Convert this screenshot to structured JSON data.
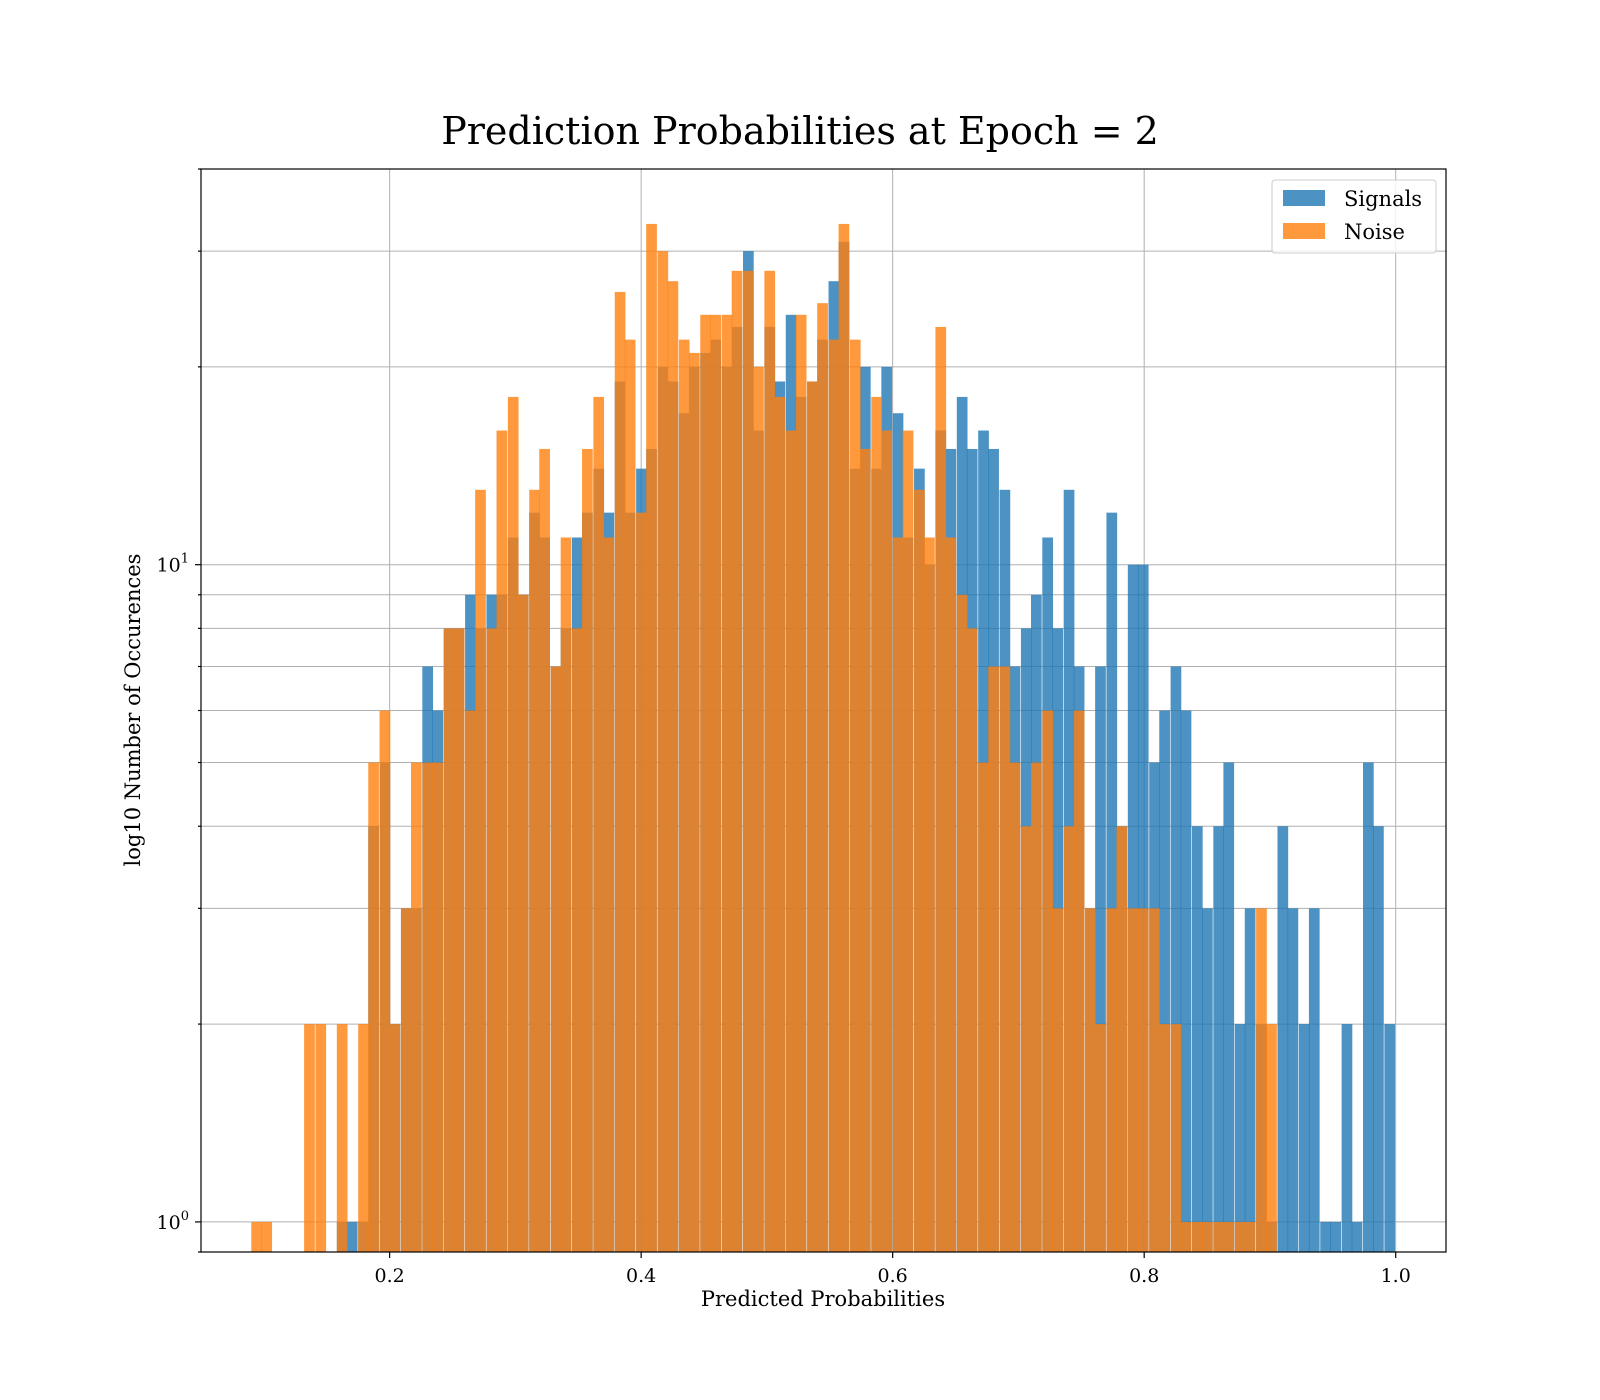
{
  "chart_data": {
    "type": "bar",
    "title": "Prediction Probabilities at Epoch = 2",
    "xlabel": "Predicted Probabilities",
    "ylabel": "log10 Number of Occurences",
    "xlim": [
      0.05,
      1.04
    ],
    "ylim": [
      0.9,
      40
    ],
    "yscale": "log",
    "x_ticks": [
      0.2,
      0.4,
      0.6,
      0.8,
      1.0
    ],
    "x_tick_labels": [
      "0.2",
      "0.4",
      "0.6",
      "0.8",
      "1.0"
    ],
    "y_ticks": [
      1,
      10
    ],
    "grid": true,
    "legend_position": "top-right",
    "bin_width": 0.0085,
    "series": [
      {
        "name": "Signals",
        "color": "#1f77b4",
        "bins": [
          [
            0.158,
            1
          ],
          [
            0.166,
            1
          ],
          [
            0.175,
            1
          ],
          [
            0.183,
            4
          ],
          [
            0.192,
            5
          ],
          [
            0.2,
            2
          ],
          [
            0.209,
            3
          ],
          [
            0.217,
            3
          ],
          [
            0.226,
            7
          ],
          [
            0.234,
            6
          ],
          [
            0.243,
            8
          ],
          [
            0.251,
            8
          ],
          [
            0.26,
            9
          ],
          [
            0.268,
            8
          ],
          [
            0.277,
            9
          ],
          [
            0.285,
            9
          ],
          [
            0.294,
            11
          ],
          [
            0.302,
            9
          ],
          [
            0.311,
            12
          ],
          [
            0.319,
            11
          ],
          [
            0.328,
            7
          ],
          [
            0.336,
            8
          ],
          [
            0.345,
            11
          ],
          [
            0.353,
            12
          ],
          [
            0.362,
            14
          ],
          [
            0.37,
            12
          ],
          [
            0.379,
            19
          ],
          [
            0.387,
            12
          ],
          [
            0.396,
            14
          ],
          [
            0.404,
            15
          ],
          [
            0.413,
            20
          ],
          [
            0.421,
            19
          ],
          [
            0.43,
            17
          ],
          [
            0.438,
            20
          ],
          [
            0.447,
            21
          ],
          [
            0.455,
            22
          ],
          [
            0.464,
            20
          ],
          [
            0.472,
            23
          ],
          [
            0.481,
            30
          ],
          [
            0.489,
            16
          ],
          [
            0.498,
            23
          ],
          [
            0.506,
            19
          ],
          [
            0.515,
            24
          ],
          [
            0.523,
            18
          ],
          [
            0.532,
            19
          ],
          [
            0.54,
            22
          ],
          [
            0.549,
            27
          ],
          [
            0.557,
            31
          ],
          [
            0.566,
            14
          ],
          [
            0.574,
            20
          ],
          [
            0.583,
            14
          ],
          [
            0.591,
            20
          ],
          [
            0.6,
            17
          ],
          [
            0.608,
            11
          ],
          [
            0.617,
            14
          ],
          [
            0.625,
            10
          ],
          [
            0.634,
            16
          ],
          [
            0.642,
            15
          ],
          [
            0.651,
            18
          ],
          [
            0.659,
            15
          ],
          [
            0.668,
            16
          ],
          [
            0.676,
            15
          ],
          [
            0.685,
            13
          ],
          [
            0.693,
            7
          ],
          [
            0.702,
            8
          ],
          [
            0.71,
            9
          ],
          [
            0.719,
            11
          ],
          [
            0.727,
            8
          ],
          [
            0.736,
            13
          ],
          [
            0.744,
            7
          ],
          [
            0.753,
            3
          ],
          [
            0.761,
            7
          ],
          [
            0.77,
            12
          ],
          [
            0.778,
            4
          ],
          [
            0.787,
            10
          ],
          [
            0.795,
            10
          ],
          [
            0.804,
            5
          ],
          [
            0.812,
            6
          ],
          [
            0.821,
            7
          ],
          [
            0.829,
            6
          ],
          [
            0.838,
            4
          ],
          [
            0.846,
            3
          ],
          [
            0.855,
            4
          ],
          [
            0.863,
            5
          ],
          [
            0.872,
            2
          ],
          [
            0.88,
            3
          ],
          [
            0.889,
            2
          ],
          [
            0.897,
            1
          ],
          [
            0.906,
            4
          ],
          [
            0.914,
            3
          ],
          [
            0.923,
            2
          ],
          [
            0.931,
            3
          ],
          [
            0.94,
            1
          ],
          [
            0.948,
            1
          ],
          [
            0.957,
            2
          ],
          [
            0.965,
            1
          ],
          [
            0.974,
            5
          ],
          [
            0.982,
            4
          ],
          [
            0.991,
            2
          ]
        ]
      },
      {
        "name": "Noise",
        "color": "#ff7f0e",
        "bins": [
          [
            0.09,
            1
          ],
          [
            0.098,
            1
          ],
          [
            0.132,
            2
          ],
          [
            0.141,
            2
          ],
          [
            0.158,
            2
          ],
          [
            0.175,
            2
          ],
          [
            0.183,
            5
          ],
          [
            0.192,
            6
          ],
          [
            0.2,
            2
          ],
          [
            0.209,
            3
          ],
          [
            0.217,
            5
          ],
          [
            0.226,
            5
          ],
          [
            0.234,
            5
          ],
          [
            0.243,
            8
          ],
          [
            0.251,
            8
          ],
          [
            0.26,
            6
          ],
          [
            0.268,
            13
          ],
          [
            0.277,
            8
          ],
          [
            0.285,
            16
          ],
          [
            0.294,
            18
          ],
          [
            0.302,
            9
          ],
          [
            0.311,
            13
          ],
          [
            0.319,
            15
          ],
          [
            0.328,
            7
          ],
          [
            0.336,
            11
          ],
          [
            0.345,
            8
          ],
          [
            0.353,
            15
          ],
          [
            0.362,
            18
          ],
          [
            0.37,
            11
          ],
          [
            0.379,
            26
          ],
          [
            0.387,
            22
          ],
          [
            0.396,
            12
          ],
          [
            0.404,
            33
          ],
          [
            0.413,
            30
          ],
          [
            0.421,
            27
          ],
          [
            0.43,
            22
          ],
          [
            0.438,
            21
          ],
          [
            0.447,
            24
          ],
          [
            0.455,
            24
          ],
          [
            0.464,
            24
          ],
          [
            0.472,
            28
          ],
          [
            0.481,
            28
          ],
          [
            0.489,
            20
          ],
          [
            0.498,
            28
          ],
          [
            0.506,
            18
          ],
          [
            0.515,
            16
          ],
          [
            0.523,
            24
          ],
          [
            0.532,
            19
          ],
          [
            0.54,
            25
          ],
          [
            0.549,
            22
          ],
          [
            0.557,
            33
          ],
          [
            0.566,
            22
          ],
          [
            0.574,
            15
          ],
          [
            0.583,
            18
          ],
          [
            0.591,
            16
          ],
          [
            0.6,
            11
          ],
          [
            0.608,
            16
          ],
          [
            0.617,
            13
          ],
          [
            0.625,
            11
          ],
          [
            0.634,
            23
          ],
          [
            0.642,
            11
          ],
          [
            0.651,
            9
          ],
          [
            0.659,
            8
          ],
          [
            0.668,
            5
          ],
          [
            0.676,
            7
          ],
          [
            0.685,
            7
          ],
          [
            0.693,
            5
          ],
          [
            0.702,
            4
          ],
          [
            0.71,
            5
          ],
          [
            0.719,
            6
          ],
          [
            0.727,
            3
          ],
          [
            0.736,
            4
          ],
          [
            0.744,
            6
          ],
          [
            0.753,
            3
          ],
          [
            0.761,
            2
          ],
          [
            0.77,
            3
          ],
          [
            0.778,
            4
          ],
          [
            0.787,
            3
          ],
          [
            0.795,
            3
          ],
          [
            0.804,
            3
          ],
          [
            0.812,
            2
          ],
          [
            0.821,
            2
          ],
          [
            0.829,
            1
          ],
          [
            0.838,
            1
          ],
          [
            0.846,
            1
          ],
          [
            0.855,
            1
          ],
          [
            0.863,
            1
          ],
          [
            0.872,
            1
          ],
          [
            0.88,
            1
          ],
          [
            0.889,
            3
          ],
          [
            0.897,
            2
          ]
        ]
      }
    ]
  }
}
